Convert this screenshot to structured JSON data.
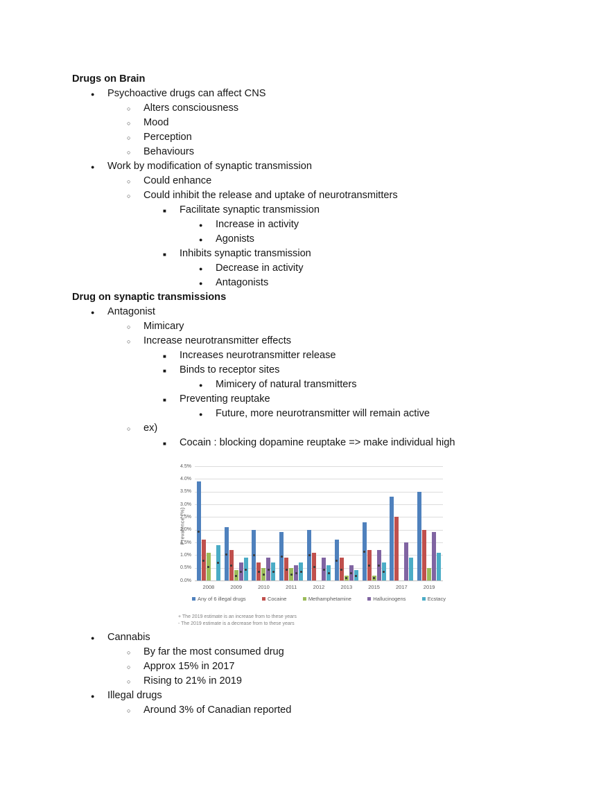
{
  "page_background": "#ffffff",
  "bullet_glyphs": {
    "1": "●",
    "2": "○",
    "3": "■",
    "4": "●"
  },
  "outline": {
    "lines_before_chart": [
      {
        "type": "heading",
        "level": 0,
        "text": "Drugs on Brain"
      },
      {
        "type": "bullet",
        "level": 1,
        "text": "Psychoactive drugs can affect CNS"
      },
      {
        "type": "bullet",
        "level": 2,
        "text": "Alters consciousness"
      },
      {
        "type": "bullet",
        "level": 2,
        "text": "Mood"
      },
      {
        "type": "bullet",
        "level": 2,
        "text": "Perception"
      },
      {
        "type": "bullet",
        "level": 2,
        "text": "Behaviours"
      },
      {
        "type": "bullet",
        "level": 1,
        "text": "Work by modification of synaptic transmission"
      },
      {
        "type": "bullet",
        "level": 2,
        "text": "Could enhance"
      },
      {
        "type": "bullet",
        "level": 2,
        "text": "Could inhibit the release and uptake of neurotransmitters"
      },
      {
        "type": "bullet",
        "level": 3,
        "text": "Facilitate synaptic transmission"
      },
      {
        "type": "bullet",
        "level": 4,
        "text": "Increase in activity"
      },
      {
        "type": "bullet",
        "level": 4,
        "text": "Agonists"
      },
      {
        "type": "bullet",
        "level": 3,
        "text": "Inhibits synaptic transmission"
      },
      {
        "type": "bullet",
        "level": 4,
        "text": "Decrease in activity"
      },
      {
        "type": "bullet",
        "level": 4,
        "text": "Antagonists"
      },
      {
        "type": "heading",
        "level": 0,
        "text": "Drug on synaptic transmissions"
      },
      {
        "type": "bullet",
        "level": 1,
        "text": "Antagonist"
      },
      {
        "type": "bullet",
        "level": 2,
        "text": "Mimicary"
      },
      {
        "type": "bullet",
        "level": 2,
        "text": "Increase neurotransmitter effects"
      },
      {
        "type": "bullet",
        "level": 3,
        "text": "Increases neurotransmitter release"
      },
      {
        "type": "bullet",
        "level": 3,
        "text": "Binds to receptor sites"
      },
      {
        "type": "bullet",
        "level": 4,
        "text": "Mimicery of natural transmitters"
      },
      {
        "type": "bullet",
        "level": 3,
        "text": "Preventing reuptake"
      },
      {
        "type": "bullet",
        "level": 4,
        "text": "Future, more neurotransmitter will remain active"
      },
      {
        "type": "bullet",
        "level": 2,
        "text": "ex)"
      },
      {
        "type": "bullet",
        "level": 3,
        "text": "Cocain : blocking dopamine reuptake => make individual high"
      }
    ],
    "lines_after_chart": [
      {
        "type": "bullet",
        "level": 1,
        "text": "Cannabis"
      },
      {
        "type": "bullet",
        "level": 2,
        "text": "By far the most consumed drug"
      },
      {
        "type": "bullet",
        "level": 2,
        "text": "Approx 15% in 2017"
      },
      {
        "type": "bullet",
        "level": 2,
        "text": "Rising to 21% in 2019"
      },
      {
        "type": "bullet",
        "level": 1,
        "text": "Illegal drugs"
      },
      {
        "type": "bullet",
        "level": 2,
        "text": "Around 3% of Canadian reported"
      }
    ]
  },
  "chart_data": {
    "type": "bar",
    "title": "",
    "xlabel": "",
    "ylabel": "Prevalence (%)",
    "ylim": [
      0,
      4.5
    ],
    "ytick_step": 0.5,
    "ytick_labels": [
      "4.5%",
      "4.0%",
      "3.5%",
      "3.0%",
      "2.5%",
      "2.0%",
      "1.5%",
      "1.0%",
      "0.5%",
      "0.0%"
    ],
    "grid": true,
    "legend_position": "bottom",
    "categories": [
      "2008",
      "2009",
      "2010",
      "2011",
      "2012",
      "2013",
      "2015",
      "2017",
      "2019"
    ],
    "series": [
      {
        "name": "Any of 6 illegal drugs",
        "color": "#4F81BD",
        "values": [
          3.9,
          2.1,
          2.0,
          1.9,
          2.0,
          1.6,
          2.3,
          3.3,
          3.5
        ]
      },
      {
        "name": "Cocaine",
        "color": "#C0504D",
        "values": [
          1.6,
          1.2,
          0.7,
          0.9,
          1.1,
          0.9,
          1.2,
          2.5,
          2.0
        ]
      },
      {
        "name": "Methamphetamine",
        "color": "#9BBB59",
        "values": [
          1.1,
          0.4,
          0.5,
          0.5,
          null,
          0.2,
          0.2,
          null,
          0.5
        ]
      },
      {
        "name": "Hallucinogens",
        "color": "#8064A2",
        "values": [
          null,
          0.7,
          0.9,
          0.6,
          0.9,
          0.6,
          1.2,
          1.5,
          1.9
        ]
      },
      {
        "name": "Ecstacy",
        "color": "#4BACC6",
        "values": [
          1.4,
          0.9,
          0.7,
          0.7,
          0.6,
          0.4,
          0.7,
          0.9,
          1.1
        ]
      }
    ],
    "significance_marked_categories": [
      "2008",
      "2009",
      "2010",
      "2011",
      "2012",
      "2013",
      "2015"
    ],
    "footnotes": [
      "+ The 2019 estimate is an increase from to these years",
      "- The 2019 estimate is a decrease from to these years"
    ]
  }
}
